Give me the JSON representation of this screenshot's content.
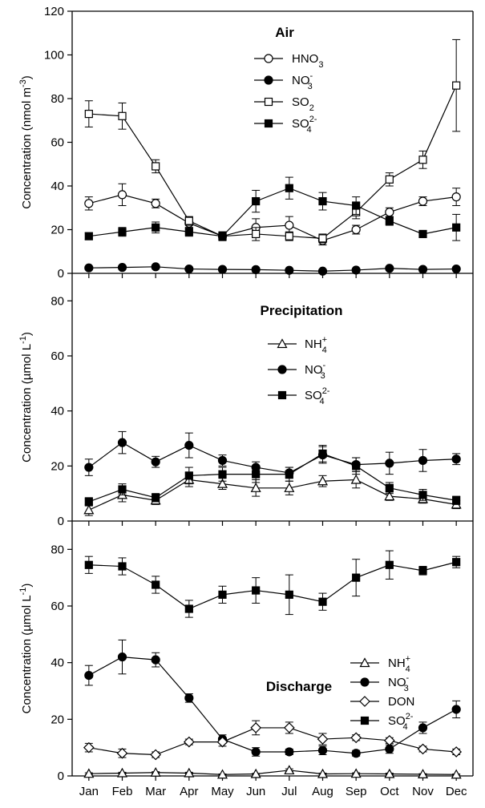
{
  "chart_data": [
    {
      "type": "line",
      "title": "Air",
      "ylabel": "Concentration (nmol m-3)",
      "ylabel_parts": {
        "prefix": "Concentration (nmol m",
        "sup": "-3",
        "suffix": ")"
      },
      "ylim": [
        0,
        120
      ],
      "yticks": [
        "0",
        "20",
        "40",
        "60",
        "80",
        "100",
        "120"
      ],
      "grid": false,
      "legend_position": "top-center",
      "x": [
        "Jan",
        "Feb",
        "Mar",
        "Apr",
        "May",
        "Jun",
        "Jul",
        "Aug",
        "Sep",
        "Oct",
        "Nov",
        "Dec"
      ],
      "series": [
        {
          "name": "HNO3",
          "label": {
            "base": "HNO",
            "sub": "3",
            "sup": ""
          },
          "marker": "circle-open",
          "values": [
            32,
            36,
            32,
            23,
            17,
            21,
            22,
            15,
            20,
            28,
            33,
            35
          ],
          "errors": [
            3,
            5,
            2,
            2,
            2,
            4,
            4,
            2,
            2,
            2,
            2,
            4
          ]
        },
        {
          "name": "NO3-",
          "label": {
            "base": "NO",
            "sub": "3",
            "sup": "-"
          },
          "marker": "circle-filled",
          "values": [
            2.5,
            2.7,
            3,
            2,
            1.8,
            1.7,
            1.4,
            1,
            1.5,
            2.3,
            1.8,
            2
          ],
          "errors": [
            0.4,
            0.4,
            0.4,
            0.3,
            0.3,
            0.3,
            0.3,
            0.2,
            0.3,
            0.4,
            0.3,
            0.3
          ]
        },
        {
          "name": "SO2",
          "label": {
            "base": "SO",
            "sub": "2",
            "sup": ""
          },
          "marker": "square-open",
          "values": [
            73,
            72,
            49,
            24,
            17,
            18,
            17,
            16,
            28,
            43,
            52,
            86
          ],
          "errors": [
            6,
            6,
            3,
            2,
            2,
            3,
            2,
            2,
            3,
            3,
            4,
            21
          ]
        },
        {
          "name": "SO42-",
          "label": {
            "base": "SO",
            "sub": "4",
            "sup": "2-"
          },
          "marker": "square-filled",
          "values": [
            17,
            19,
            21,
            19,
            17,
            33,
            39,
            33,
            31,
            24,
            18,
            21
          ],
          "errors": [
            1.5,
            2,
            2.5,
            2,
            1.5,
            5,
            5,
            4,
            4,
            2,
            1.5,
            6
          ]
        }
      ]
    },
    {
      "type": "line",
      "title": "Precipitation",
      "ylabel": "Concentration (µmol L-1)",
      "ylabel_parts": {
        "prefix": "Concentration (µmol L",
        "sup": "-1",
        "suffix": ")"
      },
      "ylim": [
        0,
        90
      ],
      "yticks": [
        "0",
        "20",
        "40",
        "60",
        "80"
      ],
      "grid": false,
      "legend_position": "top-center",
      "x": [
        "Jan",
        "Feb",
        "Mar",
        "Apr",
        "May",
        "Jun",
        "Jul",
        "Aug",
        "Sep",
        "Oct",
        "Nov",
        "Dec"
      ],
      "series": [
        {
          "name": "NH4+",
          "label": {
            "base": "NH",
            "sub": "4",
            "sup": "+"
          },
          "marker": "triangle-open",
          "values": [
            4,
            9.5,
            7.5,
            15,
            13.5,
            12,
            12,
            14.5,
            15,
            9,
            8,
            6
          ],
          "errors": [
            2,
            2.5,
            1.5,
            2.5,
            2,
            3,
            2.5,
            2,
            3,
            1.5,
            1.5,
            1.5
          ]
        },
        {
          "name": "NO3-",
          "label": {
            "base": "NO",
            "sub": "3",
            "sup": "-"
          },
          "marker": "circle-filled",
          "values": [
            19.5,
            28.5,
            21.5,
            27.5,
            22,
            19.5,
            17.5,
            24,
            20.5,
            21,
            22,
            22.5
          ],
          "errors": [
            3,
            4,
            2,
            4.5,
            2,
            2,
            2,
            3,
            2.5,
            4,
            4,
            2
          ]
        },
        {
          "name": "SO42-",
          "label": {
            "base": "SO",
            "sub": "4",
            "sup": "2-"
          },
          "marker": "square-filled",
          "values": [
            7,
            11.5,
            8.5,
            16.5,
            17,
            17,
            17,
            24.5,
            20,
            12,
            9.5,
            7.5
          ],
          "errors": [
            1.5,
            2,
            1.5,
            3,
            2.5,
            3,
            2.5,
            3,
            3,
            2,
            2,
            1.5
          ]
        }
      ]
    },
    {
      "type": "line",
      "title": "Discharge",
      "ylabel": "Concentration (µmol L-1)",
      "ylabel_parts": {
        "prefix": "Concentration (µmol L",
        "sup": "-1",
        "suffix": ")"
      },
      "ylim": [
        0,
        90
      ],
      "yticks": [
        "0",
        "20",
        "40",
        "60",
        "80"
      ],
      "grid": false,
      "legend_position": "right",
      "xticks": [
        "Jan",
        "Feb",
        "Mar",
        "Apr",
        "May",
        "Jun",
        "Jul",
        "Aug",
        "Sep",
        "Oct",
        "Nov",
        "Dec"
      ],
      "x": [
        "Jan",
        "Feb",
        "Mar",
        "Apr",
        "May",
        "Jun",
        "Jul",
        "Aug",
        "Sep",
        "Oct",
        "Nov",
        "Dec"
      ],
      "series": [
        {
          "name": "NH4+",
          "label": {
            "base": "NH",
            "sub": "4",
            "sup": "+"
          },
          "marker": "triangle-open",
          "values": [
            0.8,
            1,
            1.2,
            1,
            0.5,
            0.7,
            2,
            0.7,
            0.8,
            0.7,
            0.6,
            0.5
          ],
          "errors": [
            0.3,
            0.3,
            0.3,
            0.3,
            0.2,
            0.2,
            0.5,
            0.3,
            0.3,
            0.3,
            0.2,
            0.2
          ]
        },
        {
          "name": "NO3-",
          "label": {
            "base": "NO",
            "sub": "3",
            "sup": "-"
          },
          "marker": "circle-filled",
          "values": [
            35.5,
            42,
            41,
            27.5,
            13,
            8.5,
            8.5,
            9,
            8,
            9.5,
            17,
            23.5
          ],
          "errors": [
            3.5,
            6,
            2.5,
            1.5,
            1.5,
            1.5,
            1,
            1.5,
            1,
            1.5,
            2,
            3
          ]
        },
        {
          "name": "DON",
          "label": {
            "base": "DON",
            "sub": "",
            "sup": ""
          },
          "marker": "diamond-open",
          "values": [
            10,
            8,
            7.5,
            12,
            12,
            17,
            17,
            13,
            13.5,
            12.5,
            9.5,
            8.5
          ],
          "errors": [
            1.5,
            1.5,
            1,
            1,
            1.5,
            2.5,
            2,
            2,
            1,
            1,
            1,
            1
          ]
        },
        {
          "name": "SO42-",
          "label": {
            "base": "SO",
            "sub": "4",
            "sup": "2-"
          },
          "marker": "square-filled",
          "values": [
            74.5,
            74,
            67.5,
            59,
            64,
            65.5,
            64,
            61.5,
            70,
            74.5,
            72.5,
            75.5
          ],
          "errors": [
            3,
            3,
            3,
            3,
            3,
            4.5,
            7,
            3,
            6.5,
            5,
            1.5,
            2
          ]
        }
      ]
    }
  ]
}
